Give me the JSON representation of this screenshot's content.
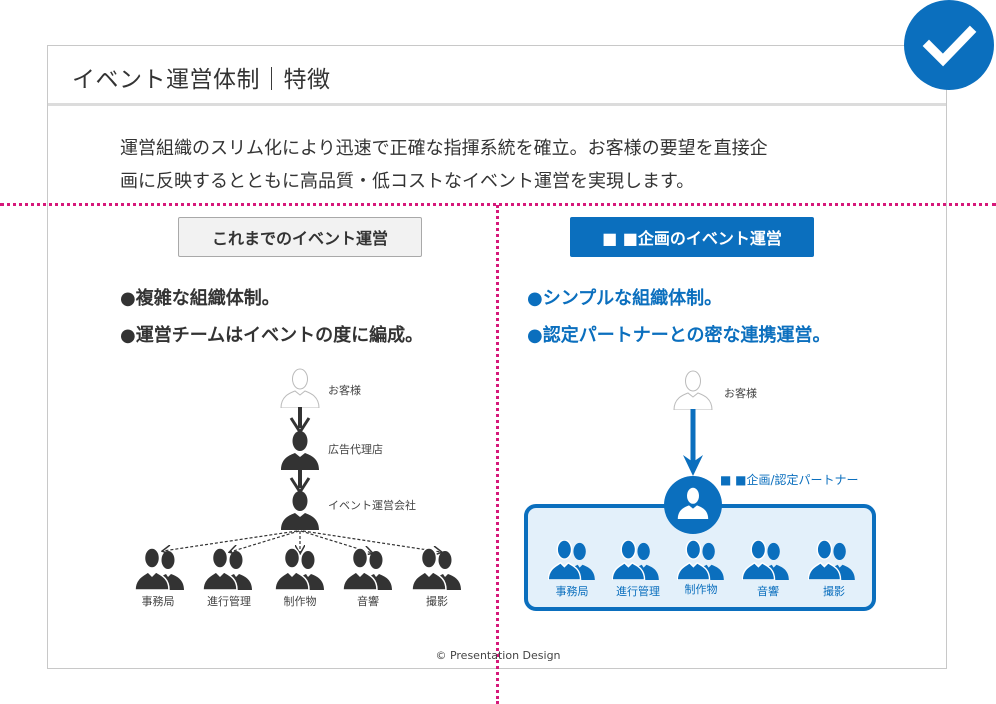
{
  "title": "イベント運営体制｜特徴",
  "description": [
    "運営組織のスリム化により迅速で正確な指揮系統を確立。お客様の要望を直接企",
    "画に反映するとともに高品質・低コストなイベント運営を実現します。"
  ],
  "colors": {
    "accent": "#0b6fbe",
    "guide": "#d6187a",
    "dark": "#333333",
    "box_fill": "#e3f0fa"
  },
  "check_icon": "checkmark-icon",
  "old": {
    "label": "これまでのイベント運営",
    "bullets": [
      "●複雑な組織体制。",
      "●運営チームはイベントの度に編成。"
    ],
    "client": "お客様",
    "agency": "広告代理店",
    "company": "イベント運営会社",
    "teams": [
      "事務局",
      "進行管理",
      "制作物",
      "音響",
      "撮影"
    ]
  },
  "new": {
    "label": "■ ■企画のイベント運営",
    "bullets": [
      "●シンプルな組織体制。",
      "●認定パートナーとの密な連携運営。"
    ],
    "client": "お客様",
    "partner": "■ ■企画/認定パートナー",
    "teams": [
      "事務局",
      "進行管理",
      "制作物",
      "音響",
      "撮影"
    ]
  },
  "copyright": "© Presentation Design"
}
